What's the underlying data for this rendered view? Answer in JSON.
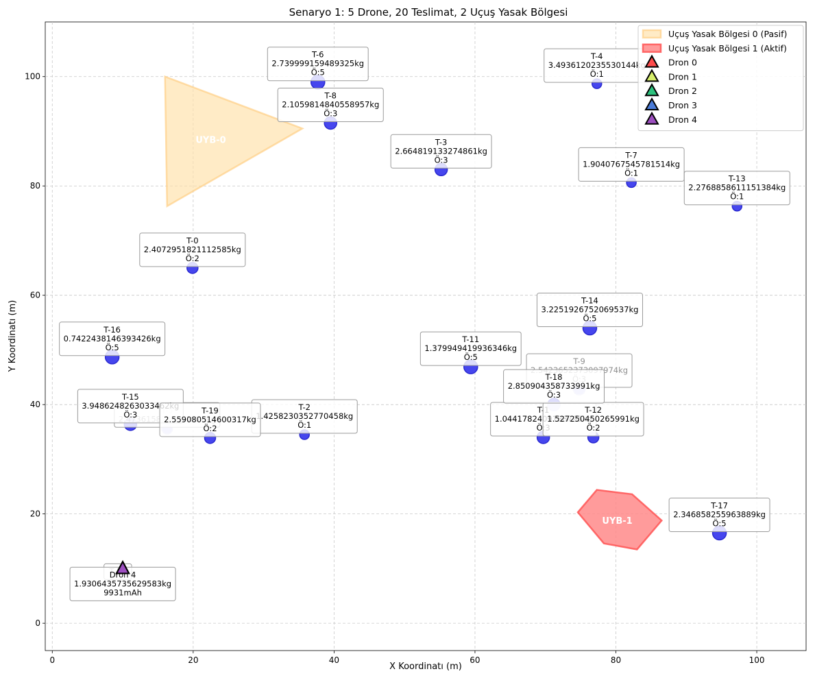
{
  "chart_data": {
    "type": "scatter",
    "title": "Senaryo 1: 5 Drone, 20 Teslimat, 2 Uçuş Yasak Bölgesi",
    "xlabel": "X Koordinatı (m)",
    "ylabel": "Y Koordinatı (m)",
    "xlim": [
      -1,
      107
    ],
    "ylim": [
      -5,
      110
    ],
    "xticks": [
      0,
      20,
      40,
      60,
      80,
      100
    ],
    "yticks": [
      0,
      20,
      40,
      60,
      80,
      100
    ],
    "grid": true,
    "legend_position": "top-right",
    "no_fly_zones": [
      {
        "label": "UYB-0",
        "legend": "Uçuş Yasak Bölgesi 0 (Pasif)",
        "status": "Pasif",
        "points": [
          [
            16,
            100
          ],
          [
            35.5,
            90.5
          ],
          [
            16.3,
            76.3
          ]
        ],
        "label_pos": [
          22.5,
          88.5
        ],
        "fill": "#ffe0a8",
        "stroke": "#ffcc80",
        "opacity": 0.65
      },
      {
        "label": "UYB-1",
        "legend": "Uçuş Yasak Bölgesi 1 (Aktif)",
        "status": "Aktif",
        "points": [
          [
            77.3,
            24.4
          ],
          [
            82.3,
            23.6
          ],
          [
            86.5,
            18.8
          ],
          [
            83,
            13.5
          ],
          [
            78.3,
            14.6
          ],
          [
            74.6,
            20.3
          ]
        ],
        "label_pos": [
          80.2,
          18.8
        ],
        "fill": "#ff8a8a",
        "stroke": "#ff5555",
        "opacity": 0.85
      }
    ],
    "deliveries": [
      {
        "id": "T-0",
        "x": 19.9,
        "y": 65.0,
        "weight": "2.4072951821112585kg",
        "priority": "Ö:2",
        "size": 8,
        "faded": false
      },
      {
        "id": "T-1",
        "x": 69.7,
        "y": 34.0,
        "weight": "1.0441782409188795kg",
        "priority": "Ö:3",
        "size": 9,
        "faded": false
      },
      {
        "id": "T-2",
        "x": 35.8,
        "y": 34.5,
        "weight": "1.4258230352770458kg",
        "priority": "Ö:1",
        "size": 7,
        "faded": false
      },
      {
        "id": "T-3",
        "x": 55.2,
        "y": 83.0,
        "weight": "2.664819133274861kg",
        "priority": "Ö:3",
        "size": 9,
        "faded": false
      },
      {
        "id": "T-4",
        "x": 77.3,
        "y": 98.7,
        "weight": "3.4936120235530144kg",
        "priority": "Ö:1",
        "size": 7,
        "faded": false
      },
      {
        "id": "T-5",
        "x": 16.3,
        "y": 35.6,
        "weight": "2.4736158241391928kg",
        "priority": "",
        "size": 8,
        "faded": true
      },
      {
        "id": "T-6",
        "x": 37.7,
        "y": 99.0,
        "weight": "2.739999159489325kg",
        "priority": "Ö:5",
        "size": 10,
        "faded": false
      },
      {
        "id": "T-7",
        "x": 82.2,
        "y": 80.6,
        "weight": "1.9040767545781514kg",
        "priority": "Ö:1",
        "size": 7,
        "faded": false
      },
      {
        "id": "T-8",
        "x": 39.5,
        "y": 91.5,
        "weight": "2.1059814840558957kg",
        "priority": "Ö:3",
        "size": 9,
        "faded": false
      },
      {
        "id": "T-9",
        "x": 74.8,
        "y": 42.9,
        "weight": "2.5423652373097974kg",
        "priority": "Ö:3",
        "size": 9,
        "faded": true
      },
      {
        "id": "T-10",
        "x": 9.3,
        "y": 9.0,
        "weight": "",
        "priority": "",
        "size": 0,
        "faded": true
      },
      {
        "id": "T-11",
        "x": 59.4,
        "y": 46.9,
        "weight": "1.379949419936346kg",
        "priority": "Ö:5",
        "size": 10,
        "faded": false
      },
      {
        "id": "T-12",
        "x": 76.8,
        "y": 34.0,
        "weight": "1.527250450265991kg",
        "priority": "Ö:2",
        "size": 8,
        "faded": false
      },
      {
        "id": "T-13",
        "x": 97.2,
        "y": 76.3,
        "weight": "2.2768858611151384kg",
        "priority": "Ö:1",
        "size": 7,
        "faded": false
      },
      {
        "id": "T-14",
        "x": 76.3,
        "y": 54.0,
        "weight": "3.2251926752069537kg",
        "priority": "Ö:5",
        "size": 10,
        "faded": false
      },
      {
        "id": "T-15",
        "x": 11.1,
        "y": 36.4,
        "weight": "3.9486248263033462kg",
        "priority": "Ö:3",
        "size": 9,
        "faded": false
      },
      {
        "id": "T-16",
        "x": 8.5,
        "y": 48.7,
        "weight": "0.7422438146393426kg",
        "priority": "Ö:5",
        "size": 10,
        "faded": false
      },
      {
        "id": "T-17",
        "x": 94.7,
        "y": 16.5,
        "weight": "2.346858255963889kg",
        "priority": "Ö:5",
        "size": 10,
        "faded": false
      },
      {
        "id": "T-18",
        "x": 71.2,
        "y": 40.0,
        "weight": "2.850904358733991kg",
        "priority": "Ö:3",
        "size": 9,
        "faded": false
      },
      {
        "id": "T-19",
        "x": 22.4,
        "y": 33.9,
        "weight": "2.559080514600317kg",
        "priority": "Ö:2",
        "size": 8,
        "faded": false
      }
    ],
    "drones": [
      {
        "name": "Dron 0",
        "color": "#ff4b4b",
        "x": 10,
        "y": 10
      },
      {
        "name": "Dron 1",
        "color": "#d6ee6b",
        "x": 10,
        "y": 10
      },
      {
        "name": "Dron 2",
        "color": "#2ec27e",
        "x": 10,
        "y": 10
      },
      {
        "name": "Dron 3",
        "color": "#4a7bd8",
        "x": 10,
        "y": 10
      },
      {
        "name": "Dron 4",
        "color": "#9d4fc0",
        "x": 10,
        "y": 10
      }
    ],
    "drone_label": {
      "name": "Dron 4",
      "weight": "1.9306435735629583kg",
      "battery": "9931mAh"
    }
  }
}
